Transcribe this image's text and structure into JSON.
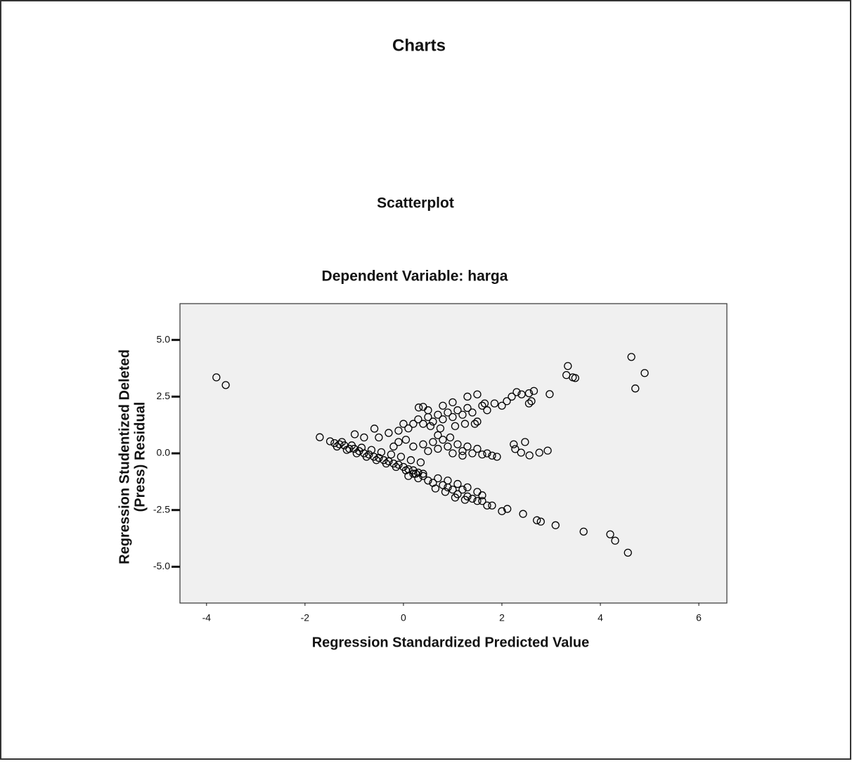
{
  "heading": "Charts",
  "chart_data": {
    "type": "scatter",
    "title": "Scatterplot",
    "subtitle": "Dependent Variable: harga",
    "xlabel": "Regression Standardized Predicted Value",
    "ylabel": [
      "Regression Studentized Deleted",
      "(Press) Residual"
    ],
    "xlim": [
      -4.54,
      6.57
    ],
    "ylim": [
      -6.6,
      6.6
    ],
    "xticks": [
      -4,
      -2,
      0,
      2,
      4,
      6
    ],
    "yticks": [
      {
        "value": 5,
        "label": "5.0"
      },
      {
        "value": 2.5,
        "label": "2.5"
      },
      {
        "value": 0,
        "label": "0.0"
      },
      {
        "value": -2.5,
        "label": "-2.5"
      },
      {
        "value": -5,
        "label": "-5.0"
      }
    ],
    "grid": false,
    "color": "#000000",
    "background": "#f0f0f0",
    "x": [
      -3.8,
      -3.61,
      4.63,
      4.9,
      4.71,
      3.34,
      3.31,
      3.44,
      3.49,
      2.97,
      2.93,
      2.76,
      3.66,
      4.2,
      4.3,
      4.56,
      3.09,
      2.79,
      2.71,
      2.43,
      2.11,
      2.0,
      1.8,
      2.47,
      2.56,
      2.39,
      2.24,
      2.27,
      -1.7,
      -1.49,
      -1.4,
      -1.3,
      -1.2,
      -1.1,
      -1.0,
      -0.9,
      -0.8,
      -0.7,
      -0.6,
      -0.5,
      -0.4,
      -0.3,
      -0.2,
      -0.1,
      0.0,
      0.1,
      0.2,
      0.3,
      0.4,
      -1.35,
      -1.15,
      -0.95,
      -0.75,
      -0.55,
      -0.35,
      -0.15,
      0.05,
      0.25,
      -1.25,
      -1.05,
      -0.85,
      -0.65,
      -0.45,
      -0.25,
      -0.05,
      0.15,
      0.35,
      -0.5,
      -0.3,
      -0.1,
      0,
      -0.1,
      -0.2,
      0.05,
      -0.59,
      -0.99,
      -0.8,
      0.1,
      0.2,
      0.3,
      0.4,
      0.5,
      0.6,
      0.7,
      0.8,
      0.9,
      1.0,
      1.1,
      1.2,
      1.3,
      1.4,
      1.5,
      1.6,
      1.7,
      1.85,
      2.0,
      2.1,
      2.2,
      2.3,
      2.4,
      2.55,
      2.65,
      2.6,
      2.55,
      0.31,
      0.4,
      0.5,
      0.8,
      1.3,
      1.5,
      1.65,
      1.0,
      0.55,
      0.75,
      1.05,
      1.25,
      1.45,
      0.2,
      0.4,
      0.5,
      0.6,
      0.7,
      0.8,
      0.9,
      1.0,
      1.1,
      1.2,
      1.3,
      1.4,
      1.5,
      1.6,
      1.7,
      1.8,
      1.9,
      1.2,
      0.7,
      0.95,
      0.1,
      0.2,
      0.3,
      0.4,
      0.5,
      0.6,
      0.7,
      0.8,
      0.9,
      1.0,
      1.1,
      1.2,
      1.3,
      1.4,
      1.5,
      1.6,
      1.7,
      1.5,
      1.3,
      1.1,
      0.9,
      0.65,
      0.85,
      1.05,
      1.25,
      1.6
    ],
    "y": [
      3.35,
      3.01,
      4.25,
      3.54,
      2.86,
      3.85,
      3.45,
      3.35,
      3.32,
      2.61,
      0.12,
      0.03,
      -3.45,
      -3.57,
      -3.85,
      -4.38,
      -3.17,
      -3.01,
      -2.95,
      -2.67,
      -2.45,
      -2.55,
      -2.3,
      0.5,
      -0.09,
      0.03,
      0.4,
      0.19,
      0.71,
      0.53,
      0.45,
      0.4,
      0.35,
      0.2,
      0.2,
      0.1,
      0,
      -0.05,
      -0.15,
      -0.2,
      -0.3,
      -0.35,
      -0.45,
      -0.5,
      -0.6,
      -0.7,
      -0.75,
      -0.85,
      -0.9,
      0.3,
      0.15,
      0,
      -0.15,
      -0.3,
      -0.45,
      -0.6,
      -0.75,
      -0.9,
      0.5,
      0.35,
      0.25,
      0.15,
      0.05,
      -0.05,
      -0.15,
      -0.3,
      -0.4,
      0.7,
      0.9,
      1.0,
      1.3,
      0.5,
      0.3,
      0.6,
      1.09,
      0.84,
      0.7,
      1.1,
      1.3,
      1.5,
      1.3,
      1.6,
      1.4,
      1.7,
      1.5,
      1.8,
      1.6,
      1.9,
      1.7,
      2.0,
      1.8,
      1.4,
      2.1,
      1.9,
      2.2,
      2.1,
      2.3,
      2.5,
      2.7,
      2.6,
      2.65,
      2.75,
      2.3,
      2.2,
      2.02,
      2.05,
      1.9,
      2.1,
      2.5,
      2.6,
      2.2,
      2.25,
      1.2,
      1.1,
      1.2,
      1.3,
      1.3,
      0.3,
      0.4,
      0.1,
      0.5,
      0.2,
      0.6,
      0.3,
      0,
      0.4,
      0.1,
      0.3,
      0,
      0.2,
      -0.05,
      0,
      -0.1,
      -0.15,
      -0.1,
      0.8,
      0.7,
      -1.0,
      -0.9,
      -1.1,
      -1.0,
      -1.2,
      -1.3,
      -1.1,
      -1.4,
      -1.5,
      -1.6,
      -1.8,
      -1.6,
      -1.9,
      -2.0,
      -2.1,
      -2.1,
      -2.3,
      -1.7,
      -1.5,
      -1.35,
      -1.2,
      -1.55,
      -1.7,
      -1.95,
      -2.05,
      -1.85
    ]
  }
}
